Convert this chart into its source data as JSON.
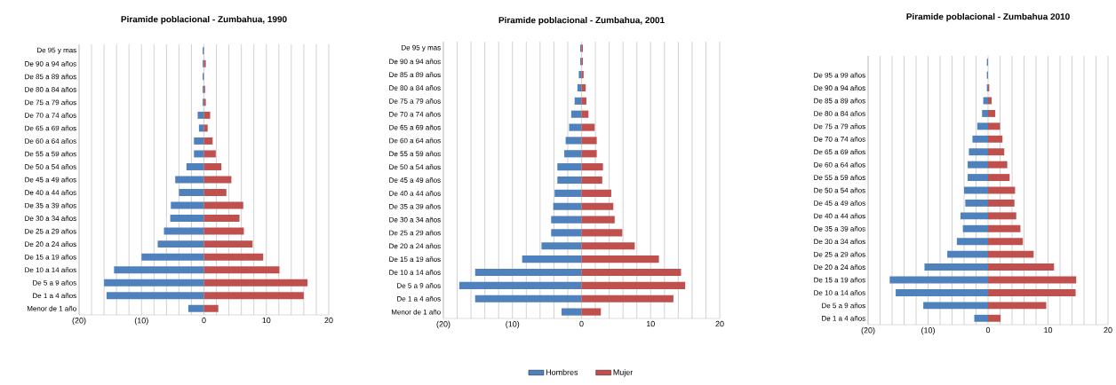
{
  "chart_data": [
    {
      "type": "bar",
      "orientation": "horizontal",
      "title": "Piramide poblacional  - Zumbahua, 1990",
      "categories": [
        "De 95 y mas",
        "De 90 a 94 años",
        "De 85 a 89 años",
        "De 80 a 84 años",
        "De 75 a 79 años",
        "De 70 a 74 años",
        "De 65 a 69 años",
        "De 60 a 64 años",
        "De 55 a 59 años",
        "De 50 a 54 años",
        "De 45 a 49 años",
        "De 40 a 44 años",
        "De 35 a 39 años",
        "De 30 a 34 años",
        "De 25 a 29 años",
        "De 20 a 24 años",
        "De 15 a 19 años",
        "De 10 a 14 años",
        "De 5 a 9 años",
        "De 1 a 4 años",
        "Menor de 1 año"
      ],
      "series": [
        {
          "color": "#4f81bd",
          "values": [
            -0.2,
            -0.2,
            -0.2,
            -0.2,
            -0.2,
            -1.0,
            -0.8,
            -1.6,
            -1.6,
            -2.8,
            -4.6,
            -4.0,
            -5.3,
            -5.4,
            -6.4,
            -7.4,
            -10.0,
            -14.4,
            -16.0,
            -15.6,
            -2.5
          ]
        },
        {
          "color": "#c0504d",
          "values": [
            0,
            0.3,
            0,
            0.2,
            0.3,
            1.0,
            0.6,
            1.4,
            1.9,
            2.8,
            4.4,
            3.6,
            6.3,
            5.7,
            6.4,
            7.8,
            9.5,
            12.1,
            16.6,
            16.0,
            2.3
          ]
        }
      ],
      "xlim": [
        -20,
        20
      ],
      "xticks": [
        {
          "value": -20,
          "label": "(20)"
        },
        {
          "value": -18,
          "label": null
        },
        {
          "value": -16,
          "label": null
        },
        {
          "value": -14,
          "label": null
        },
        {
          "value": -12,
          "label": null
        },
        {
          "value": -10,
          "label": "(10)"
        },
        {
          "value": -8,
          "label": null
        },
        {
          "value": -6,
          "label": null
        },
        {
          "value": -4,
          "label": null
        },
        {
          "value": -2,
          "label": null
        },
        0,
        {
          "value": 2,
          "label": null
        },
        {
          "value": 4,
          "label": null
        },
        {
          "value": 6,
          "label": null
        },
        {
          "value": 8,
          "label": null
        },
        10,
        {
          "value": 12,
          "label": null
        },
        {
          "value": 14,
          "label": null
        },
        {
          "value": 16,
          "label": null
        },
        {
          "value": 18,
          "label": null
        },
        20
      ],
      "grid": "x",
      "stacked": true
    },
    {
      "type": "bar",
      "orientation": "horizontal",
      "title": "Piramide poblacional - Zumbahua, 2001",
      "categories": [
        "De 95 y mas",
        "De 90 a 94 años",
        "De 85 a 89 años",
        "De 80 a 84 años",
        "De 75 a 79 años",
        "De 70 a 74 años",
        "De 65 a 69 años",
        "De 60 a 64 años",
        "De 55 a 59 años",
        "De 50 a 54 años",
        "De 45 a 49 años",
        "De 40 a 44 años",
        "De 35 a 39 años",
        "De 30 a 34 años",
        "De 25 a 29 años",
        "De 20 a 24 años",
        "De 15 a 19 años",
        "De 10 a 14 años",
        "De 5 a 9 años",
        "De 1 a 4 años",
        "Menor de 1 año"
      ],
      "series": [
        {
          "name": "Hombres",
          "color": "#4f81bd",
          "values": [
            -0.2,
            -0.2,
            -0.4,
            -0.6,
            -1.0,
            -1.5,
            -1.8,
            -2.3,
            -2.5,
            -3.5,
            -3.5,
            -3.9,
            -4.1,
            -4.4,
            -4.4,
            -5.8,
            -8.6,
            -15.4,
            -17.7,
            -15.4,
            -2.9
          ]
        },
        {
          "name": "Mujer",
          "color": "#c0504d",
          "values": [
            0.2,
            0.2,
            0.3,
            0.6,
            0.7,
            1.0,
            1.9,
            2.2,
            2.2,
            3.1,
            3.0,
            4.3,
            4.6,
            4.8,
            5.9,
            7.7,
            11.2,
            14.4,
            15.0,
            13.3,
            2.8
          ]
        }
      ],
      "xlim": [
        -20,
        20
      ],
      "xticks": [
        {
          "value": -20,
          "label": "(20)"
        },
        {
          "value": -18,
          "label": null
        },
        {
          "value": -16,
          "label": null
        },
        {
          "value": -14,
          "label": null
        },
        {
          "value": -12,
          "label": null
        },
        {
          "value": -10,
          "label": "(10)"
        },
        {
          "value": -8,
          "label": null
        },
        {
          "value": -6,
          "label": null
        },
        {
          "value": -4,
          "label": null
        },
        {
          "value": -2,
          "label": null
        },
        0,
        {
          "value": 2,
          "label": null
        },
        {
          "value": 4,
          "label": null
        },
        {
          "value": 6,
          "label": null
        },
        {
          "value": 8,
          "label": null
        },
        10,
        {
          "value": 12,
          "label": null
        },
        {
          "value": 14,
          "label": null
        },
        {
          "value": 16,
          "label": null
        },
        {
          "value": 18,
          "label": null
        },
        20
      ],
      "grid": "x",
      "legend": "bottom",
      "stacked": true
    },
    {
      "type": "bar",
      "orientation": "horizontal",
      "title": "Piramide poblacional - Zumbahua  2010",
      "categories": [
        null,
        "De 95 a 99 años",
        "De 90 a 94 años",
        "De 85 a 89 años",
        "De 80 a 84 años",
        "De 75 a 79 años",
        "De 70 a 74 años",
        "De 65 a 69 años",
        "De 60 a 64 años",
        "De 55 a 59 años",
        "De 50 a 54 años",
        "De 45 a 49 años",
        "De 40 a 44 años",
        "De 35 a 39 años",
        "De 30 a 34 años",
        "De 25 a 29 años",
        "De 20 a 24 años",
        "De 15 a 19 años",
        "De 10 a 14 años",
        "De 5 a 9 años",
        "De 1 a 4 años"
      ],
      "series": [
        {
          "color": "#4f81bd",
          "values": [
            -0.2,
            -0.2,
            -0.2,
            -0.8,
            -1.0,
            -1.8,
            -2.6,
            -3.2,
            -3.4,
            -3.4,
            -4.0,
            -3.8,
            -4.6,
            -4.2,
            -5.2,
            -6.8,
            -10.6,
            -16.4,
            -15.4,
            -10.8,
            -2.3
          ]
        },
        {
          "color": "#c0504d",
          "values": [
            0,
            0,
            0.2,
            0.6,
            1.2,
            2.0,
            2.4,
            2.7,
            3.2,
            3.6,
            4.5,
            4.4,
            4.7,
            5.4,
            5.8,
            7.6,
            11.0,
            14.7,
            14.6,
            9.7,
            2.1
          ]
        }
      ],
      "xlim": [
        -20,
        20
      ],
      "xticks": [
        {
          "value": -20,
          "label": "(20)"
        },
        {
          "value": -18,
          "label": null
        },
        {
          "value": -16,
          "label": null
        },
        {
          "value": -14,
          "label": null
        },
        {
          "value": -12,
          "label": null
        },
        {
          "value": -10,
          "label": "(10)"
        },
        {
          "value": -8,
          "label": null
        },
        {
          "value": -6,
          "label": null
        },
        {
          "value": -4,
          "label": null
        },
        {
          "value": -2,
          "label": null
        },
        0,
        {
          "value": 2,
          "label": null
        },
        {
          "value": 4,
          "label": null
        },
        {
          "value": 6,
          "label": null
        },
        {
          "value": 8,
          "label": null
        },
        10,
        {
          "value": 12,
          "label": null
        },
        {
          "value": 14,
          "label": null
        },
        {
          "value": 16,
          "label": null
        },
        {
          "value": 18,
          "label": null
        },
        20
      ],
      "grid": "x",
      "stacked": true
    }
  ]
}
